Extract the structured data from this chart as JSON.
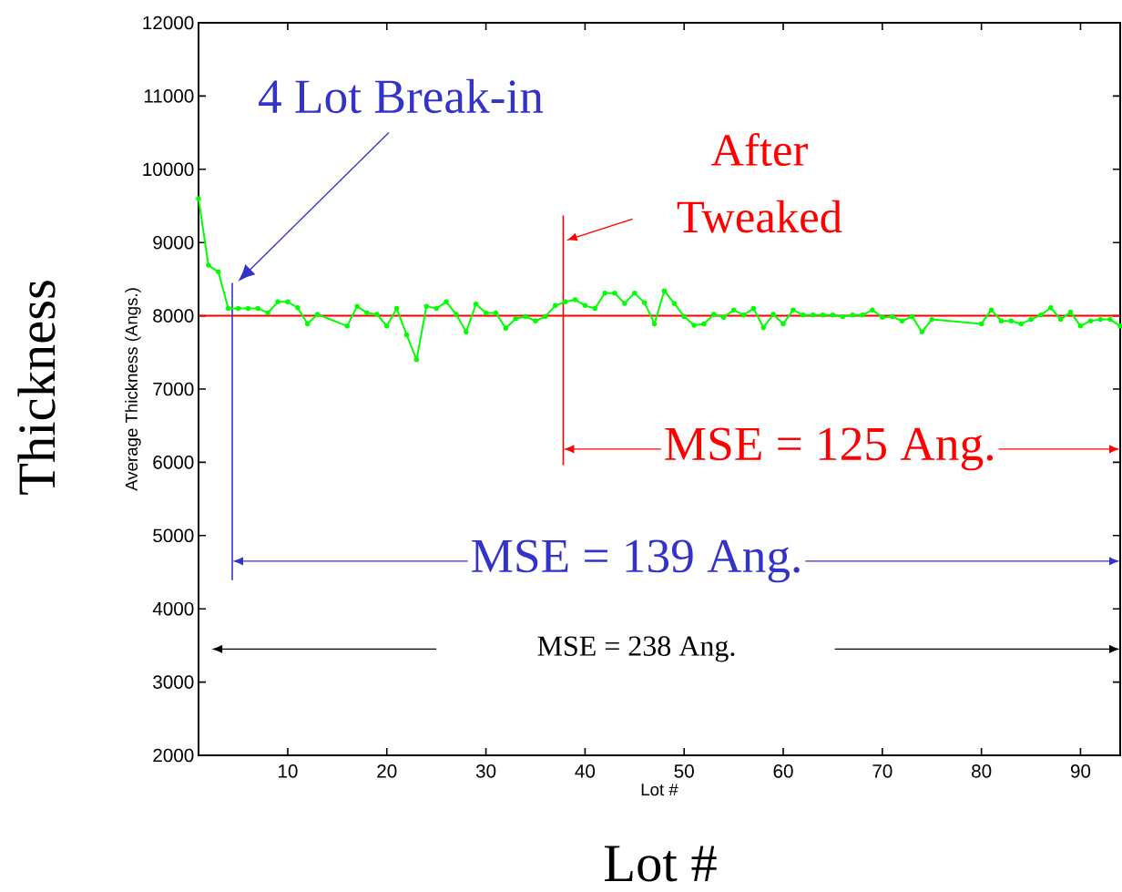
{
  "chart_data": {
    "type": "line",
    "xlabel": "Lot #",
    "ylabel": "Average Thickness (Angs.)",
    "x": [
      1,
      2,
      3,
      4,
      5,
      6,
      7,
      8,
      9,
      10,
      11,
      12,
      13,
      16,
      17,
      18,
      19,
      20,
      21,
      22,
      23,
      24,
      25,
      26,
      27,
      28,
      29,
      30,
      31,
      32,
      33,
      34,
      35,
      36,
      37,
      38,
      39,
      40,
      41,
      42,
      43,
      44,
      45,
      46,
      47,
      48,
      49,
      50,
      51,
      52,
      53,
      54,
      55,
      56,
      57,
      58,
      59,
      60,
      61,
      62,
      63,
      64,
      65,
      66,
      67,
      68,
      69,
      70,
      71,
      72,
      73,
      74,
      75,
      80,
      81,
      82,
      83,
      84,
      85,
      86,
      87,
      88,
      89,
      90,
      91,
      92,
      93,
      94
    ],
    "series": [
      {
        "color": "#00ff00",
        "values": [
          9600,
          8690,
          8600,
          8100,
          8100,
          8100,
          8100,
          8040,
          8190,
          8190,
          8110,
          7890,
          8020,
          7860,
          8130,
          8040,
          8020,
          7860,
          8100,
          7740,
          7400,
          8130,
          8100,
          8190,
          8020,
          7780,
          8160,
          8040,
          8040,
          7830,
          7960,
          7990,
          7930,
          7990,
          8140,
          8190,
          8220,
          8140,
          8100,
          8310,
          8310,
          8170,
          8310,
          8180,
          7890,
          8340,
          8170,
          7990,
          7870,
          7890,
          8020,
          7980,
          8080,
          8010,
          8100,
          7840,
          8020,
          7890,
          8080,
          8010,
          8010,
          8010,
          8010,
          7990,
          8010,
          8010,
          8080,
          7980,
          7990,
          7930,
          7990,
          7780,
          7950,
          7890,
          8080,
          7930,
          7930,
          7890,
          7950,
          8010,
          8110,
          7950,
          8050,
          7860,
          7930,
          7950,
          7950,
          7860
        ]
      }
    ],
    "xlim": [
      1,
      94
    ],
    "ylim": [
      2000,
      12000
    ],
    "xticks": [
      10,
      20,
      30,
      40,
      50,
      60,
      70,
      80,
      90
    ],
    "yticks": [
      2000,
      3000,
      4000,
      5000,
      6000,
      7000,
      8000,
      9000,
      10000,
      11000,
      12000
    ],
    "marker": "circle",
    "line_style": "solid",
    "grid": false,
    "ref_lines": [
      {
        "axis": "y",
        "value": 8000,
        "color": "#ff0000"
      },
      {
        "axis": "x",
        "value": 37.8,
        "color": "#ff0000"
      },
      {
        "axis": "x",
        "value": 4.4,
        "color": "#3333cc"
      }
    ],
    "annotations": [
      "4 Lot Break-in",
      "After Tweaked",
      {
        "text": "MSE = 125 Ang.",
        "x": 37.8,
        "y": 6180
      },
      "MSE = 139 Ang.",
      "MSE = 238 Ang.",
      "Thickness",
      "Lot #"
    ]
  }
}
